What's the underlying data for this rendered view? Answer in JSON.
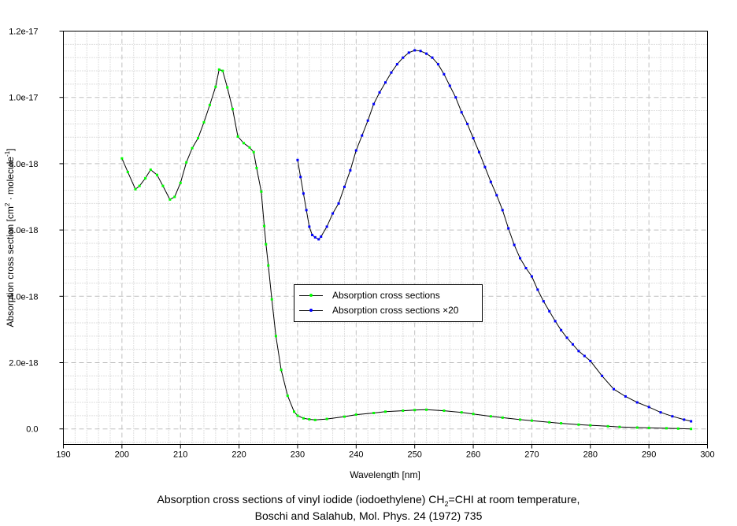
{
  "chart_data": {
    "type": "line",
    "title": "",
    "xlabel": "Wavelength [nm]",
    "ylabel": {
      "main": "Absorption cross section [cm",
      "sup1": "2",
      "mid": " · molecule",
      "sup2": "-1",
      "end": "]"
    },
    "xlim": [
      190,
      300
    ],
    "ylim": [
      -4.7e-19,
      1.2e-17
    ],
    "x_ticks": [
      190,
      200,
      210,
      220,
      230,
      240,
      250,
      260,
      270,
      280,
      290,
      300
    ],
    "y_ticks": [
      0,
      2e-18,
      4e-18,
      6e-18,
      8e-18,
      1e-17,
      1.2e-17
    ],
    "y_tick_labels": [
      "0.0",
      "2.0e-18",
      "4.0e-18",
      "6.0e-18",
      "8.0e-18",
      "1.0e-17",
      "1.2e-17"
    ],
    "grid": true,
    "legend_position": "center",
    "series": [
      {
        "name": "Absorption cross sections",
        "color": "#00ff00",
        "x": [
          200,
          201,
          202.3,
          203,
          204,
          204.9,
          206,
          207,
          208.2,
          209,
          210,
          211,
          212,
          213,
          214,
          215,
          216,
          216.6,
          217.2,
          218,
          218.9,
          219.8,
          220.8,
          221.8,
          222.5,
          223,
          223.8,
          224.3,
          224.6,
          225,
          225.6,
          226.3,
          227.2,
          228.3,
          229.4,
          230,
          231,
          232,
          233,
          235,
          238,
          240,
          243,
          245,
          248,
          250,
          252,
          255,
          258,
          260,
          263,
          265,
          268,
          270,
          273,
          275,
          278,
          280,
          283,
          285,
          288,
          290,
          293,
          295,
          297.2
        ],
        "y_e18": [
          8.16,
          7.75,
          7.23,
          7.33,
          7.56,
          7.82,
          7.66,
          7.33,
          6.92,
          7.0,
          7.42,
          8.04,
          8.47,
          8.77,
          9.25,
          9.77,
          10.32,
          10.84,
          10.8,
          10.3,
          9.65,
          8.82,
          8.62,
          8.49,
          8.35,
          7.87,
          7.16,
          6.12,
          5.57,
          4.93,
          3.91,
          2.8,
          1.78,
          1.0,
          0.52,
          0.4,
          0.32,
          0.29,
          0.27,
          0.3,
          0.37,
          0.43,
          0.48,
          0.52,
          0.55,
          0.57,
          0.58,
          0.55,
          0.5,
          0.45,
          0.38,
          0.34,
          0.28,
          0.25,
          0.2,
          0.17,
          0.13,
          0.11,
          0.08,
          0.06,
          0.04,
          0.03,
          0.02,
          0.01,
          0.0
        ]
      },
      {
        "name": "Absorption cross sections ×20",
        "color": "#0000ff",
        "x": [
          230,
          230.5,
          231,
          231.5,
          232,
          232.5,
          233,
          233.6,
          234,
          235,
          236,
          237,
          238,
          239,
          240,
          241,
          242,
          243,
          244,
          245,
          246,
          247,
          248,
          249,
          250,
          251,
          252,
          253,
          254,
          255,
          256,
          257,
          258,
          259,
          260,
          261,
          262,
          263,
          264,
          265,
          266,
          267,
          268,
          269,
          270,
          271,
          272,
          273,
          274,
          275,
          276,
          277,
          278,
          279,
          280,
          282,
          284,
          286,
          288,
          290,
          292,
          294,
          296,
          297.2
        ],
        "y_e18": [
          8.11,
          7.6,
          7.1,
          6.6,
          6.1,
          5.85,
          5.78,
          5.72,
          5.8,
          6.1,
          6.5,
          6.8,
          7.3,
          7.8,
          8.4,
          8.85,
          9.3,
          9.8,
          10.15,
          10.45,
          10.75,
          11.0,
          11.2,
          11.35,
          11.42,
          11.4,
          11.32,
          11.2,
          11.0,
          10.7,
          10.35,
          10.0,
          9.55,
          9.2,
          8.77,
          8.35,
          7.9,
          7.45,
          7.05,
          6.6,
          6.05,
          5.55,
          5.15,
          4.85,
          4.6,
          4.2,
          3.85,
          3.55,
          3.25,
          2.98,
          2.75,
          2.55,
          2.35,
          2.2,
          2.05,
          1.6,
          1.2,
          0.98,
          0.8,
          0.66,
          0.5,
          0.38,
          0.28,
          0.23
        ]
      }
    ],
    "caption": {
      "line1_a": "Absorption cross sections of vinyl iodide (iodoethylene) CH",
      "line1_sub": "2",
      "line1_b": "=CHI at room temperature,",
      "line2": "Boschi and Salahub, Mol. Phys. 24 (1972) 735"
    }
  }
}
